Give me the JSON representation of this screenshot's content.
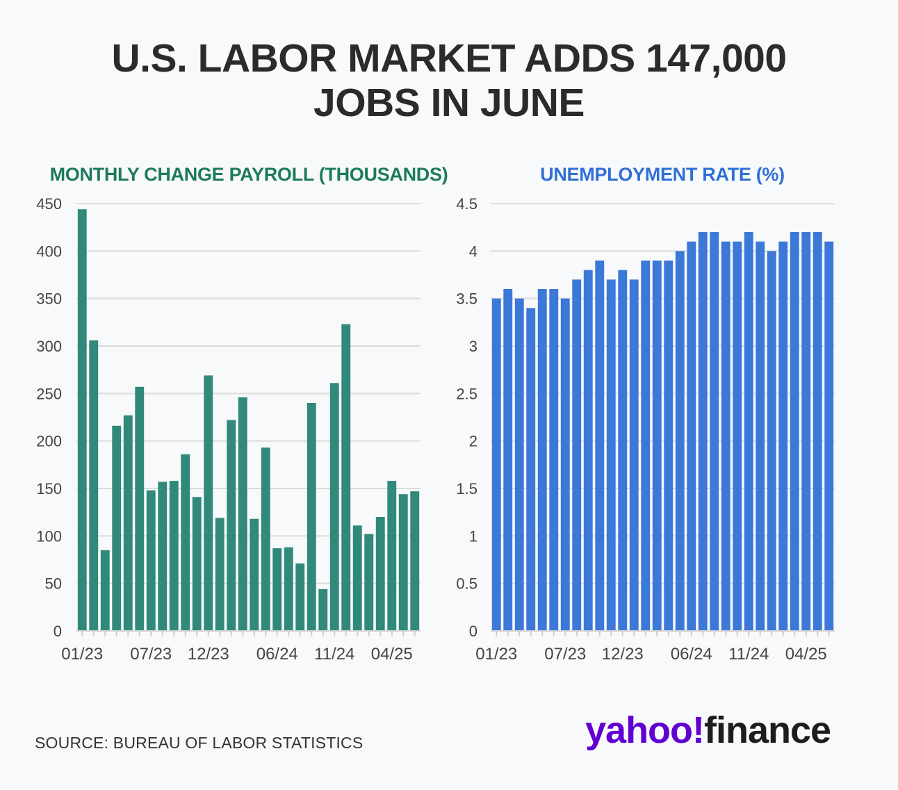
{
  "title_lines": [
    "U.S. LABOR MARKET ADDS 147,000",
    "JOBS IN JUNE"
  ],
  "source": "SOURCE: BUREAU OF LABOR STATISTICS",
  "logo": {
    "part1": "yahoo!",
    "part2": "finance"
  },
  "colors": {
    "payroll": "#30897a",
    "unemployment": "#3b78d8",
    "payroll_title": "#1c7a5d",
    "unemployment_title": "#2f6fd6",
    "brand": "#6001d2"
  },
  "chart_data": [
    {
      "type": "bar",
      "title": "MONTHLY CHANGE PAYROLL (THOUSANDS)",
      "x_tick_labels": [
        "01/23",
        "07/23",
        "12/23",
        "06/24",
        "11/24",
        "04/25"
      ],
      "x_tick_indices": [
        0,
        6,
        11,
        17,
        22,
        27
      ],
      "values": [
        444,
        306,
        85,
        216,
        227,
        257,
        148,
        157,
        158,
        186,
        141,
        269,
        119,
        222,
        246,
        118,
        193,
        87,
        88,
        71,
        240,
        44,
        261,
        323,
        111,
        102,
        120,
        158,
        144,
        147
      ],
      "yticks": [
        0,
        50,
        100,
        150,
        200,
        250,
        300,
        350,
        400,
        450
      ],
      "ylim": [
        0,
        450
      ],
      "grid": true
    },
    {
      "type": "bar",
      "title": "UNEMPLOYMENT RATE (%)",
      "x_tick_labels": [
        "01/23",
        "07/23",
        "12/23",
        "06/24",
        "11/24",
        "04/25"
      ],
      "x_tick_indices": [
        0,
        6,
        11,
        17,
        22,
        27
      ],
      "values": [
        3.5,
        3.6,
        3.5,
        3.4,
        3.6,
        3.6,
        3.5,
        3.7,
        3.8,
        3.9,
        3.7,
        3.8,
        3.7,
        3.9,
        3.9,
        3.9,
        4.0,
        4.1,
        4.2,
        4.2,
        4.1,
        4.1,
        4.2,
        4.1,
        4.0,
        4.1,
        4.2,
        4.2,
        4.2,
        4.1
      ],
      "yticks": [
        "0",
        "0.5",
        "1",
        "1.5",
        "2",
        "2.5",
        "3",
        "3.5",
        "4",
        "4.5"
      ],
      "ylim": [
        0,
        4.5
      ],
      "grid": true
    }
  ]
}
